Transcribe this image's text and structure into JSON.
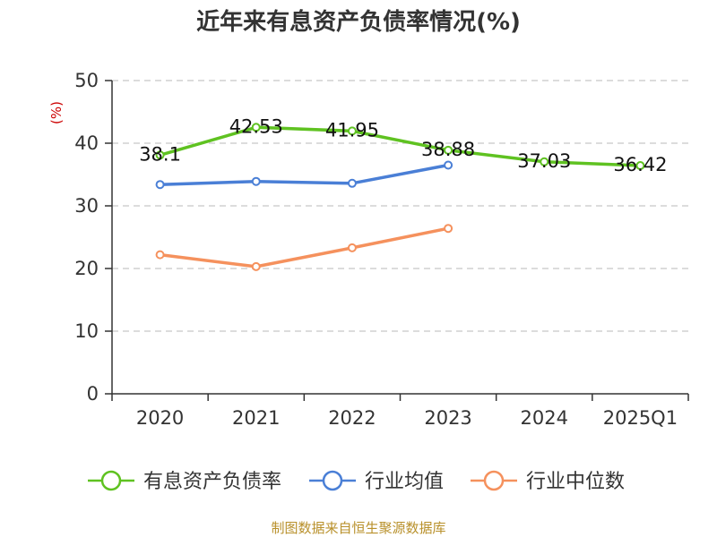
{
  "chart_data": {
    "type": "line",
    "title": "近年来有息资产负债率情况(%)",
    "ylabel": "(%)",
    "ylim": [
      0,
      50
    ],
    "yticks": [
      0,
      10,
      20,
      30,
      40,
      50
    ],
    "categories": [
      "2020",
      "2021",
      "2022",
      "2023",
      "2024",
      "2025Q1"
    ],
    "grid": true,
    "legend_position": "bottom",
    "series": [
      {
        "name": "有息资产负债率",
        "color": "#5fc221",
        "values": [
          38.1,
          42.53,
          41.95,
          38.88,
          37.03,
          36.42
        ],
        "labels": [
          "38.1",
          "42.53",
          "41.95",
          "38.88",
          "37.03",
          "36.42"
        ],
        "show_labels": true
      },
      {
        "name": "行业均值",
        "color": "#4a7fd6",
        "values": [
          33.4,
          33.9,
          33.6,
          36.5,
          null,
          null
        ],
        "show_labels": false
      },
      {
        "name": "行业中位数",
        "color": "#f5915d",
        "values": [
          22.2,
          20.3,
          23.3,
          26.4,
          null,
          null
        ],
        "show_labels": false
      }
    ],
    "source": "制图数据来自恒生聚源数据库"
  }
}
